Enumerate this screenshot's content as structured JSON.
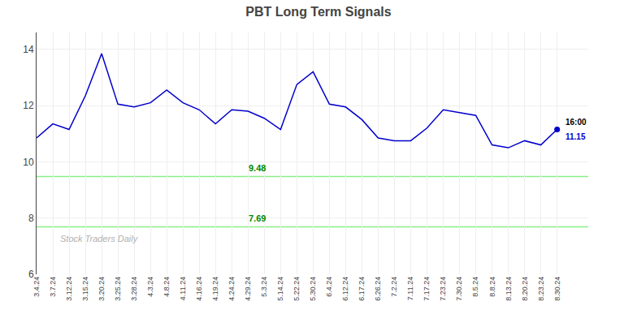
{
  "chart_data": {
    "type": "line",
    "title": "PBT Long Term Signals",
    "color": "#0000cc",
    "categories": [
      "3.4.24",
      "3.7.24",
      "3.12.24",
      "3.15.24",
      "3.20.24",
      "3.25.24",
      "3.28.24",
      "4.3.24",
      "4.8.24",
      "4.11.24",
      "4.16.24",
      "4.19.24",
      "4.24.24",
      "4.29.24",
      "5.3.24",
      "5.14.24",
      "5.22.24",
      "5.30.24",
      "6.4.24",
      "6.12.24",
      "6.17.24",
      "6.26.24",
      "7.2.24",
      "7.11.24",
      "7.17.24",
      "7.23.24",
      "7.30.24",
      "8.5.24",
      "8.8.24",
      "8.13.24",
      "8.20.24",
      "8.23.24",
      "8.30.24"
    ],
    "values": [
      10.85,
      11.35,
      11.15,
      12.35,
      13.85,
      12.05,
      11.95,
      12.1,
      12.55,
      12.1,
      11.85,
      11.35,
      11.85,
      11.8,
      11.55,
      11.15,
      12.75,
      13.2,
      12.05,
      11.95,
      11.5,
      10.85,
      10.75,
      10.75,
      11.2,
      11.85,
      11.75,
      11.65,
      10.6,
      10.5,
      10.75,
      10.6,
      11.15
    ],
    "hlines": [
      {
        "value": 9.48,
        "label": "9.48",
        "color": "#88ee88"
      },
      {
        "value": 7.69,
        "label": "7.69",
        "color": "#88ee88"
      }
    ],
    "last_point_labels": [
      "16:00",
      "11.15"
    ],
    "watermark": "Stock Traders Daily",
    "ylim": [
      6.0,
      14.6
    ],
    "yticks": [
      6,
      8,
      10,
      12,
      14
    ],
    "grid": true
  }
}
